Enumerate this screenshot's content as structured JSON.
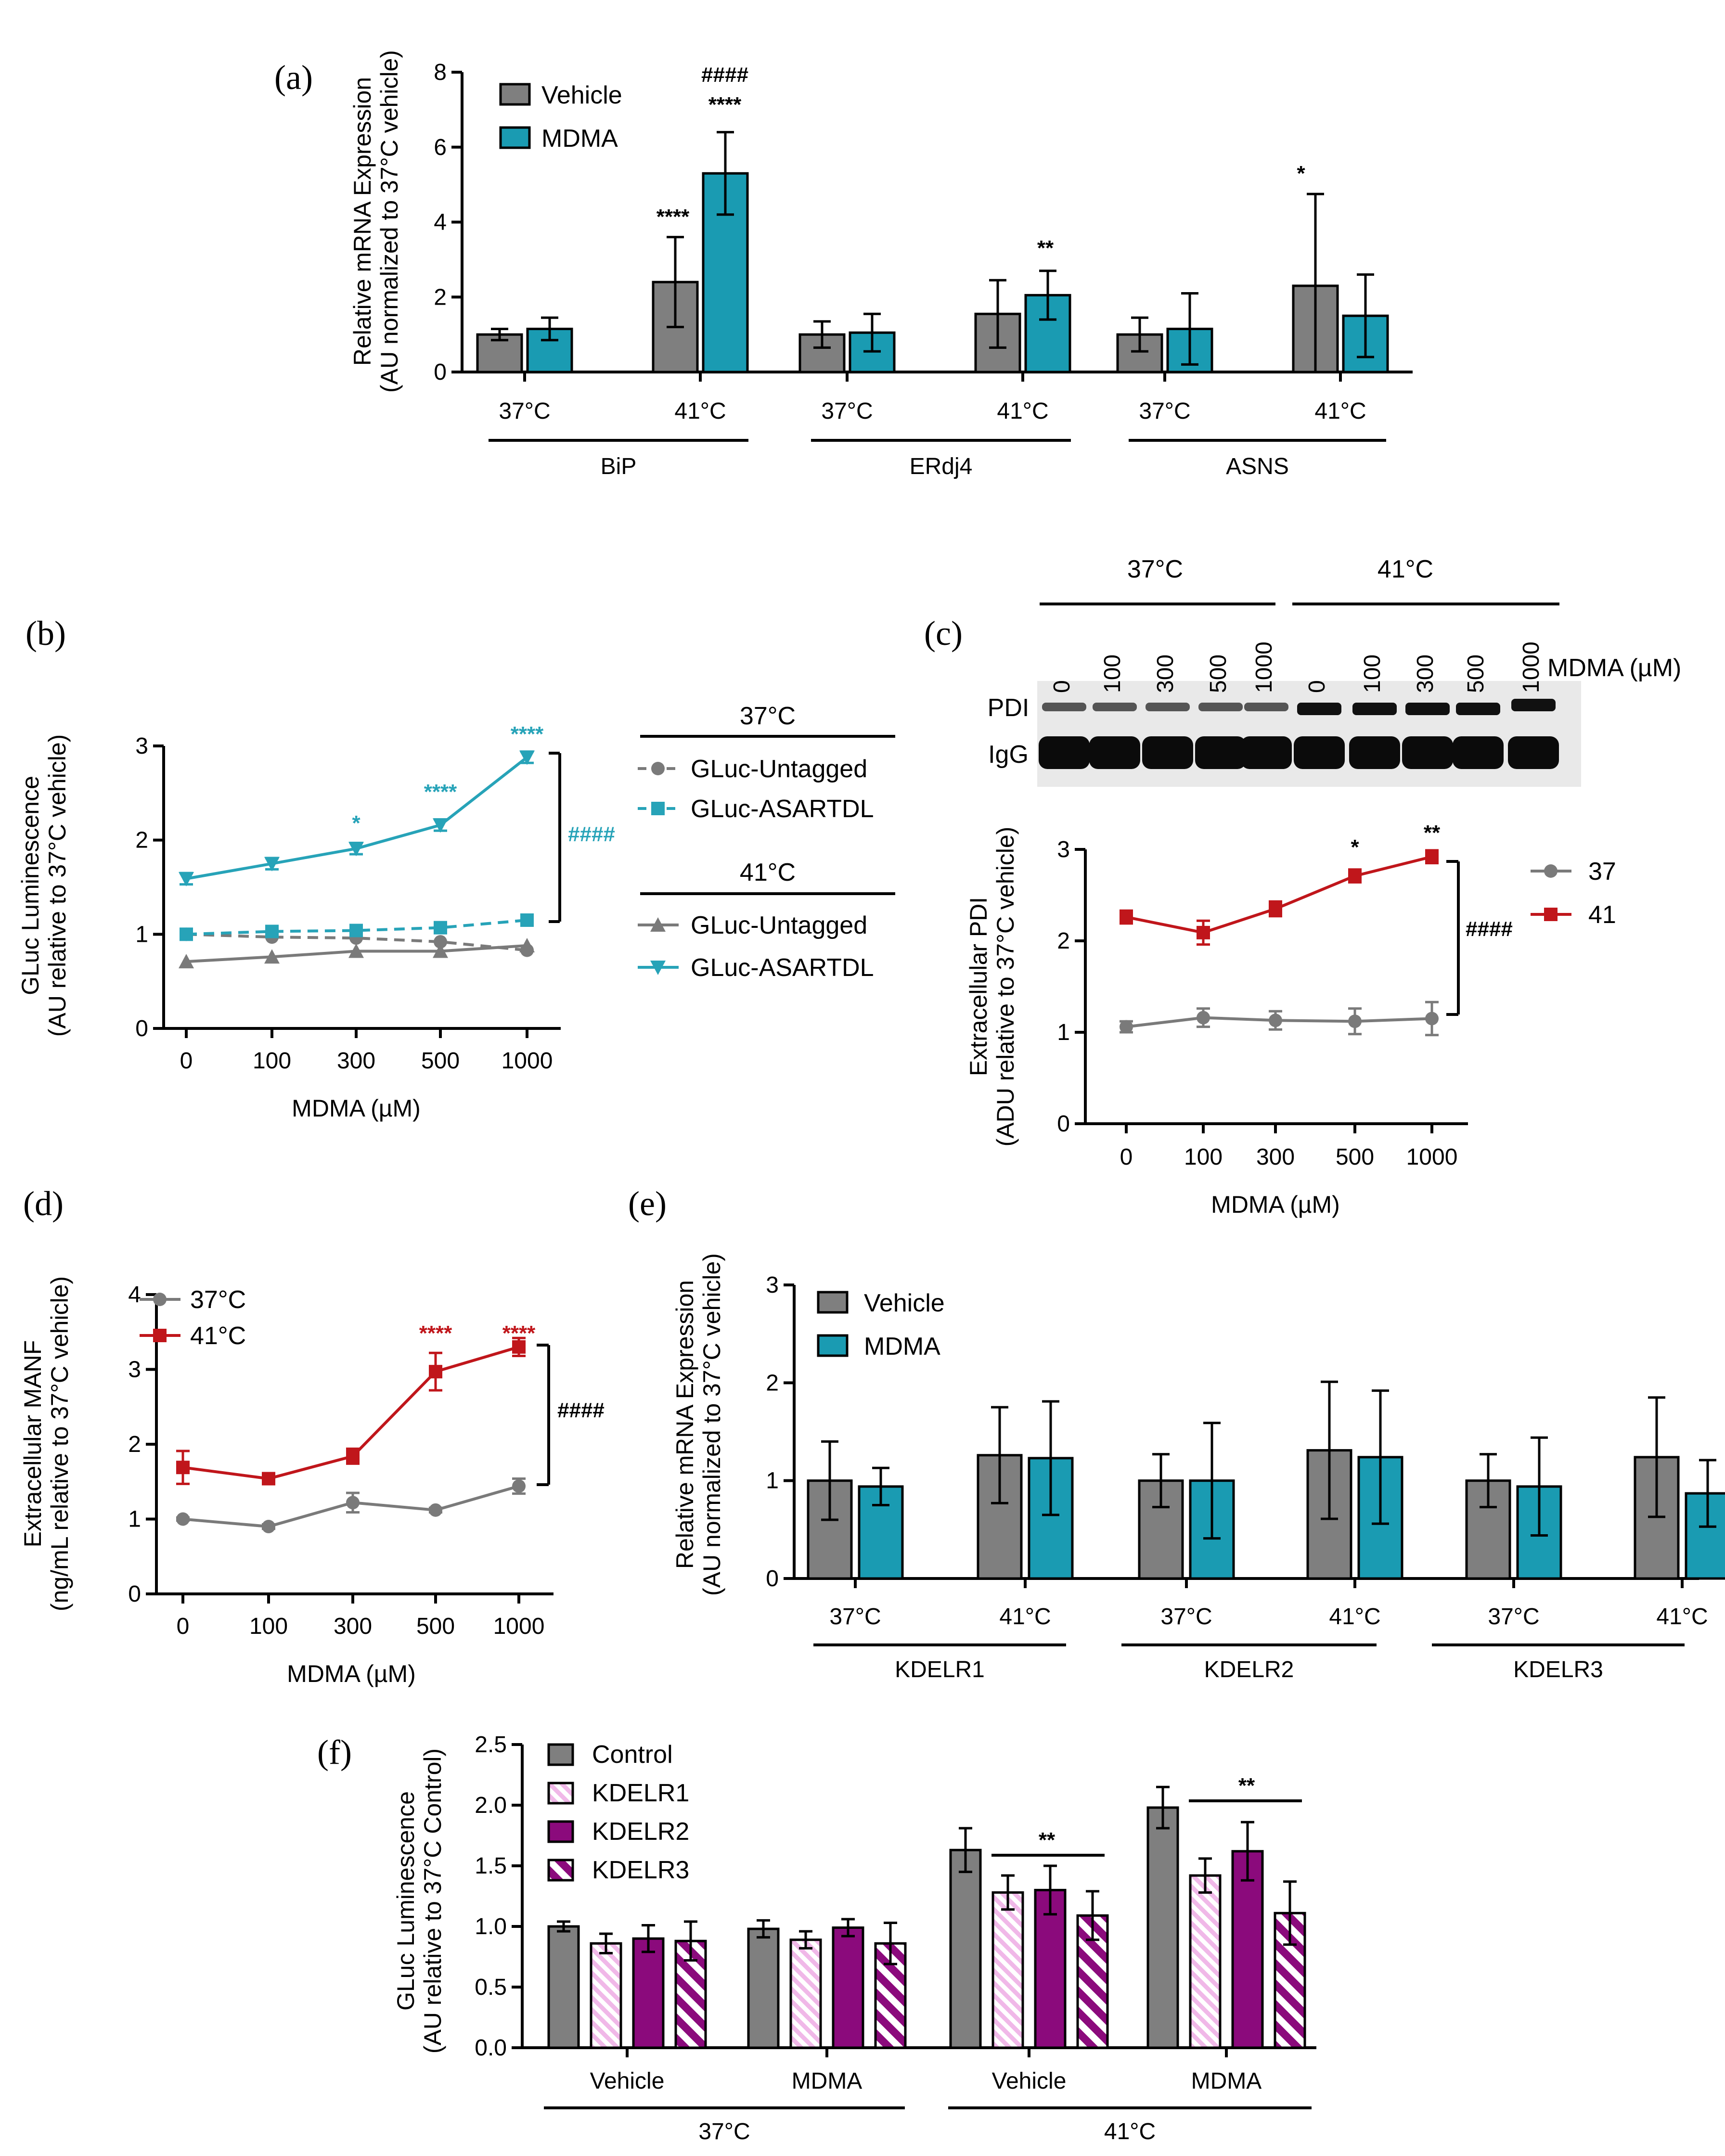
{
  "colors": {
    "vehicle": "#7f7f7f",
    "mdma": "#1a9bb2",
    "red": "#c0161b",
    "gray_line": "#7a7a7a",
    "teal_line": "#27a3b8",
    "purple": "#8b0a7c",
    "stripe_light": "#f0b8e8"
  },
  "chart_data": [
    {
      "id": "a",
      "panel_label": "(a)",
      "type": "bar",
      "ylabel": "Relative mRNA Expression",
      "ylabel2": "(AU normalized to 37°C vehicle)",
      "ylim": [
        0,
        8
      ],
      "yticks": [
        "0",
        "2",
        "4",
        "6",
        "8"
      ],
      "legend": [
        "Vehicle",
        "MDMA"
      ],
      "categories": [
        "37°C",
        "41°C",
        "37°C",
        "41°C",
        "37°C",
        "41°C"
      ],
      "groups": [
        "BiP",
        "ERdj4",
        "ASNS"
      ],
      "series": [
        {
          "name": "Vehicle",
          "values": [
            1.0,
            2.4,
            1.0,
            1.55,
            1.0,
            2.3
          ],
          "errors": [
            0.15,
            1.2,
            0.35,
            0.9,
            0.45,
            2.45
          ]
        },
        {
          "name": "MDMA",
          "values": [
            1.15,
            5.3,
            1.05,
            2.05,
            1.15,
            1.5
          ],
          "errors": [
            0.3,
            1.1,
            0.5,
            0.65,
            0.95,
            1.1
          ]
        }
      ],
      "annotations": [
        "****",
        "####",
        "****",
        "**",
        "*"
      ]
    },
    {
      "id": "b",
      "panel_label": "(b)",
      "type": "line",
      "ylabel": "GLuc Luminescence",
      "ylabel2": "(AU relative to 37°C vehicle)",
      "xlabel": "MDMA (µM)",
      "x": [
        "0",
        "100",
        "300",
        "500",
        "1000"
      ],
      "yticks": [
        "0",
        "1",
        "2",
        "3"
      ],
      "ylim": [
        0,
        3
      ],
      "legend_group_37": "37°C",
      "legend_group_41": "41°C",
      "series": [
        {
          "name": "GLuc-Untagged",
          "temp": "37°C",
          "values": [
            1.0,
            0.97,
            0.96,
            0.92,
            0.83
          ]
        },
        {
          "name": "GLuc-ASARTDL",
          "temp": "37°C",
          "values": [
            1.0,
            1.03,
            1.04,
            1.07,
            1.15
          ]
        },
        {
          "name": "GLuc-Untagged",
          "temp": "41°C",
          "values": [
            0.71,
            0.76,
            0.82,
            0.82,
            0.88
          ]
        },
        {
          "name": "GLuc-ASARTDL",
          "temp": "41°C",
          "values": [
            1.59,
            1.75,
            1.91,
            2.16,
            2.88
          ]
        }
      ],
      "annotations": [
        "*",
        "****",
        "****",
        "####"
      ]
    },
    {
      "id": "c",
      "panel_label": "(c)",
      "type": "line",
      "ylabel": "Extracellular PDI",
      "ylabel2": "(ADU relative to 37°C vehicle)",
      "xlabel": "MDMA (µM)",
      "x": [
        "0",
        "100",
        "300",
        "500",
        "1000"
      ],
      "yticks": [
        "0",
        "1",
        "2",
        "3"
      ],
      "ylim": [
        0,
        3
      ],
      "blot_headers": [
        "37°C",
        "41°C"
      ],
      "blot_lanes": [
        "0",
        "100",
        "300",
        "500",
        "1000",
        "0",
        "100",
        "300",
        "500",
        "1000"
      ],
      "blot_label_mdma": "MDMA (µM)",
      "blot_band_pdi": "PDI",
      "blot_band_igg": "IgG",
      "legend": [
        "37",
        "41"
      ],
      "series": [
        {
          "name": "37°C",
          "values": [
            1.06,
            1.16,
            1.13,
            1.12,
            1.15
          ],
          "errors": [
            0.06,
            0.1,
            0.1,
            0.14,
            0.18
          ]
        },
        {
          "name": "41°C",
          "values": [
            2.26,
            2.09,
            2.35,
            2.71,
            2.92
          ],
          "errors": [
            0.07,
            0.13,
            0.08,
            0.07,
            0.07
          ]
        }
      ],
      "annotations": [
        "*",
        "**",
        "####"
      ]
    },
    {
      "id": "d",
      "panel_label": "(d)",
      "type": "line",
      "ylabel": "Extracellular MANF",
      "ylabel2": "(ng/mL relative to 37°C vehicle)",
      "xlabel": "MDMA (µM)",
      "x": [
        "0",
        "100",
        "300",
        "500",
        "1000"
      ],
      "yticks": [
        "0",
        "1",
        "2",
        "3",
        "4"
      ],
      "ylim": [
        0,
        4
      ],
      "legend": [
        "37°C",
        "41°C"
      ],
      "series": [
        {
          "name": "37°C",
          "values": [
            1.0,
            0.9,
            1.22,
            1.12,
            1.44
          ],
          "errors": [
            0.02,
            0.03,
            0.13,
            0.03,
            0.1
          ]
        },
        {
          "name": "41°C",
          "values": [
            1.69,
            1.54,
            1.84,
            2.97,
            3.3
          ],
          "errors": [
            0.22,
            0.04,
            0.1,
            0.25,
            0.12
          ]
        }
      ],
      "annotations": [
        "****",
        "****",
        "####"
      ]
    },
    {
      "id": "e",
      "panel_label": "(e)",
      "type": "bar",
      "ylabel": "Relative mRNA Expression",
      "ylabel2": "(AU normalized to 37°C vehicle)",
      "ylim": [
        0,
        3
      ],
      "yticks": [
        "0",
        "1",
        "2",
        "3"
      ],
      "legend": [
        "Vehicle",
        "MDMA"
      ],
      "categories": [
        "37°C",
        "41°C",
        "37°C",
        "41°C",
        "37°C",
        "41°C"
      ],
      "groups": [
        "KDELR1",
        "KDELR2",
        "KDELR3"
      ],
      "series": [
        {
          "name": "Vehicle",
          "values": [
            1.0,
            1.26,
            1.0,
            1.31,
            1.0,
            1.24
          ],
          "errors": [
            0.4,
            0.49,
            0.27,
            0.7,
            0.27,
            0.61
          ]
        },
        {
          "name": "MDMA",
          "values": [
            0.94,
            1.23,
            1.0,
            1.24,
            0.94,
            0.87
          ],
          "errors": [
            0.19,
            0.58,
            0.59,
            0.68,
            0.5,
            0.34
          ]
        }
      ]
    },
    {
      "id": "f",
      "panel_label": "(f)",
      "type": "bar",
      "ylabel": "GLuc Luminescence",
      "ylabel2": "(AU relative to 37°C Control)",
      "ylim": [
        0,
        2.5
      ],
      "yticks": [
        "0.0",
        "0.5",
        "1.0",
        "1.5",
        "2.0",
        "2.5"
      ],
      "legend": [
        "Control",
        "KDELR1",
        "KDELR2",
        "KDELR3"
      ],
      "categories": [
        "Vehicle",
        "MDMA",
        "Vehicle",
        "MDMA"
      ],
      "groups": [
        "37°C",
        "41°C"
      ],
      "series": [
        {
          "name": "Control",
          "values": [
            1.0,
            0.98,
            1.63,
            1.98
          ],
          "errors": [
            0.04,
            0.07,
            0.18,
            0.17
          ]
        },
        {
          "name": "KDELR1",
          "values": [
            0.86,
            0.89,
            1.28,
            1.42
          ],
          "errors": [
            0.08,
            0.07,
            0.14,
            0.14
          ]
        },
        {
          "name": "KDELR2",
          "values": [
            0.9,
            0.99,
            1.3,
            1.62
          ],
          "errors": [
            0.11,
            0.07,
            0.2,
            0.24
          ]
        },
        {
          "name": "KDELR3",
          "values": [
            0.88,
            0.86,
            1.09,
            1.11
          ],
          "errors": [
            0.16,
            0.17,
            0.2,
            0.26
          ]
        }
      ],
      "annotations": [
        "**",
        "**"
      ]
    }
  ]
}
